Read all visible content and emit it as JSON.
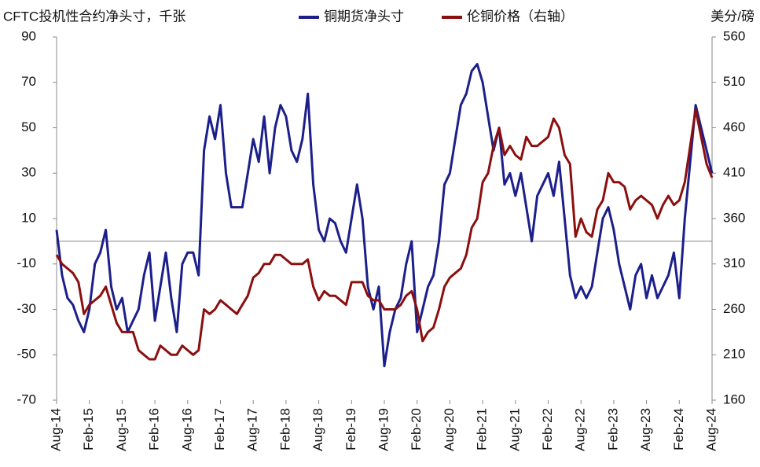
{
  "chart_data": {
    "type": "line",
    "title": "CFTC投机性合约净头寸，千张",
    "y2_label": "美分/磅",
    "categories": [
      "Aug-14",
      null,
      null,
      null,
      null,
      null,
      "Feb-15",
      null,
      null,
      null,
      null,
      null,
      "Aug-15",
      null,
      null,
      null,
      null,
      null,
      "Feb-16",
      null,
      null,
      null,
      null,
      null,
      "Aug-16",
      null,
      null,
      null,
      null,
      null,
      "Feb-17",
      null,
      null,
      null,
      null,
      null,
      "Aug-17",
      null,
      null,
      null,
      null,
      null,
      "Feb-18",
      null,
      null,
      null,
      null,
      null,
      "Aug-18",
      null,
      null,
      null,
      null,
      null,
      "Feb-19",
      null,
      null,
      null,
      null,
      null,
      "Aug-19",
      null,
      null,
      null,
      null,
      null,
      "Feb-20",
      null,
      null,
      null,
      null,
      null,
      "Aug-20",
      null,
      null,
      null,
      null,
      null,
      "Feb-21",
      null,
      null,
      null,
      null,
      null,
      "Aug-21",
      null,
      null,
      null,
      null,
      null,
      "Feb-22",
      null,
      null,
      null,
      null,
      null,
      "Aug-22",
      null,
      null,
      null,
      null,
      null,
      "Feb-23",
      null,
      null,
      null,
      null,
      null,
      "Aug-23",
      null,
      null,
      null,
      null,
      null,
      "Feb-24",
      null,
      null,
      null,
      null,
      null,
      "Aug-24"
    ],
    "ylim": [
      -70,
      90
    ],
    "yticks": [
      90,
      70,
      50,
      30,
      10,
      -10,
      -30,
      -50,
      -70
    ],
    "y2lim": [
      160,
      560
    ],
    "y2ticks": [
      560,
      510,
      460,
      410,
      360,
      310,
      260,
      210,
      160
    ],
    "legend": "top",
    "series": [
      {
        "name": "铜期货净头寸",
        "color": "#1c1f8a",
        "axis": "y",
        "values": [
          5,
          -15,
          -25,
          -28,
          -35,
          -40,
          -30,
          -10,
          -5,
          5,
          -20,
          -30,
          -25,
          -40,
          -35,
          -30,
          -15,
          -5,
          -35,
          -20,
          -5,
          -25,
          -40,
          -10,
          -5,
          -5,
          -15,
          40,
          55,
          45,
          60,
          30,
          15,
          15,
          15,
          30,
          45,
          35,
          55,
          30,
          50,
          60,
          55,
          40,
          35,
          45,
          65,
          25,
          5,
          0,
          10,
          8,
          0,
          -5,
          10,
          25,
          10,
          -20,
          -30,
          -20,
          -55,
          -40,
          -30,
          -25,
          -10,
          0,
          -40,
          -30,
          -20,
          -15,
          0,
          25,
          30,
          45,
          60,
          65,
          75,
          78,
          70,
          55,
          40,
          50,
          25,
          30,
          20,
          30,
          15,
          0,
          20,
          25,
          30,
          20,
          35,
          10,
          -15,
          -25,
          -20,
          -25,
          -20,
          -5,
          10,
          15,
          5,
          -10,
          -20,
          -30,
          -15,
          -10,
          -25,
          -15,
          -25,
          -20,
          -15,
          -5,
          -25,
          10,
          35,
          60,
          50,
          40,
          30
        ]
      },
      {
        "name": "伦铜价格（右轴）",
        "color": "#8b0f0f",
        "axis": "y2",
        "values": [
          320,
          310,
          305,
          300,
          290,
          255,
          265,
          270,
          275,
          285,
          265,
          245,
          235,
          235,
          235,
          215,
          210,
          205,
          205,
          220,
          215,
          210,
          210,
          220,
          215,
          210,
          215,
          260,
          255,
          260,
          270,
          265,
          260,
          255,
          265,
          275,
          295,
          300,
          310,
          310,
          320,
          320,
          315,
          310,
          310,
          310,
          315,
          285,
          270,
          280,
          275,
          275,
          270,
          265,
          290,
          290,
          290,
          275,
          270,
          270,
          260,
          260,
          260,
          265,
          275,
          280,
          260,
          225,
          235,
          240,
          260,
          285,
          295,
          300,
          305,
          320,
          350,
          360,
          400,
          410,
          440,
          460,
          430,
          440,
          430,
          425,
          450,
          440,
          440,
          445,
          450,
          470,
          460,
          430,
          420,
          340,
          360,
          345,
          340,
          370,
          380,
          410,
          400,
          400,
          395,
          370,
          380,
          385,
          380,
          375,
          360,
          375,
          385,
          375,
          380,
          400,
          440,
          480,
          450,
          420,
          405
        ]
      }
    ]
  }
}
